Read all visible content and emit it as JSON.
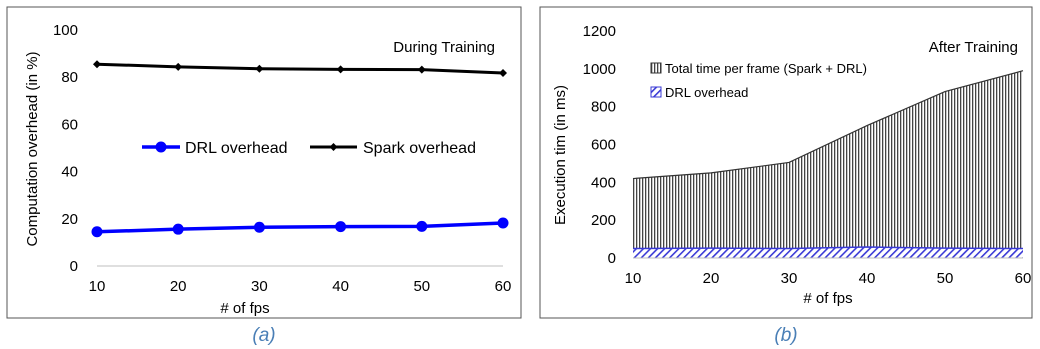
{
  "chart_data": [
    {
      "type": "line",
      "panel_caption": "(a)",
      "annotation": "During Training",
      "xlabel": "# of fps",
      "ylabel": "Computation overhead (in %)",
      "x": [
        10,
        20,
        30,
        40,
        50,
        60
      ],
      "xlim": [
        10,
        60
      ],
      "ylim": [
        0,
        100
      ],
      "yticks": [
        0,
        20,
        40,
        60,
        80,
        100
      ],
      "xticks": [
        10,
        20,
        30,
        40,
        50,
        60
      ],
      "grid": false,
      "legend_position": "center",
      "series": [
        {
          "name": "DRL overhead",
          "color": "#0000ff",
          "values": [
            14.5,
            15.6,
            16.4,
            16.7,
            16.8,
            18.2
          ]
        },
        {
          "name": "Spark overhead",
          "color": "#000000",
          "values": [
            85.5,
            84.4,
            83.6,
            83.3,
            83.2,
            81.8
          ]
        }
      ]
    },
    {
      "type": "area",
      "panel_caption": "(b)",
      "annotation": "After Training",
      "xlabel": "# of fps",
      "ylabel": "Execution tim (in ms)",
      "x": [
        10,
        20,
        30,
        40,
        50,
        60
      ],
      "xlim": [
        10,
        60
      ],
      "ylim": [
        0,
        1200
      ],
      "yticks": [
        0,
        200,
        400,
        600,
        800,
        1000,
        1200
      ],
      "xticks": [
        10,
        20,
        30,
        40,
        50,
        60
      ],
      "grid": false,
      "legend_position": "top-left",
      "series": [
        {
          "name": "Total time per frame (Spark + DRL)",
          "color": "#333333",
          "values": [
            420,
            450,
            505,
            700,
            880,
            990
          ]
        },
        {
          "name": "DRL overhead",
          "color": "#3a3ad6",
          "values": [
            50,
            52,
            50,
            58,
            52,
            50
          ]
        }
      ]
    }
  ]
}
